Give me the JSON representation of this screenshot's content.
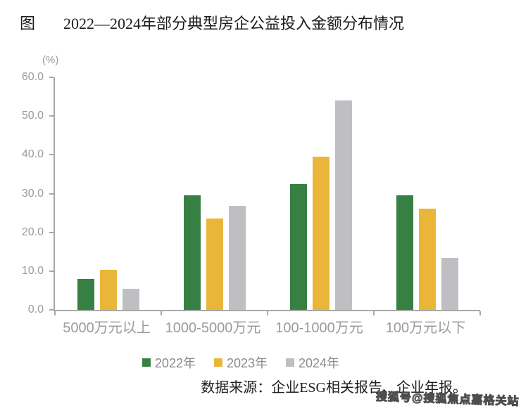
{
  "title": {
    "prefix": "图",
    "text": "2022—2024年部分典型房企公益投入金额分布情况"
  },
  "chart_data": {
    "type": "bar",
    "title": "2022—2024年部分典型房企公益投入金额分布情况",
    "unit_label": "(%)",
    "xlabel": "",
    "ylabel": "(%)",
    "ylim": [
      0,
      60
    ],
    "ytick_step": 10,
    "yticks": [
      "0.0",
      "10.0",
      "20.0",
      "30.0",
      "40.0",
      "50.0",
      "60.0"
    ],
    "grid": false,
    "legend_position": "bottom",
    "categories": [
      "5000万元以上",
      "1000-5000万元",
      "100-1000万元",
      "100万元以下"
    ],
    "series": [
      {
        "name": "2022年",
        "color": "#378043",
        "values": [
          7.9,
          29.5,
          32.4,
          29.5
        ]
      },
      {
        "name": "2023年",
        "color": "#eab63a",
        "values": [
          10.3,
          23.6,
          39.5,
          26.1
        ]
      },
      {
        "name": "2024年",
        "color": "#bfbfc3",
        "values": [
          5.4,
          26.9,
          54.0,
          13.4
        ]
      }
    ]
  },
  "source_note": "数据来源：企业ESG相关报告、企业年报。",
  "watermark": "搜狐号@搜狐焦点嘉格关站",
  "colors": {
    "axis": "#a8a8a8",
    "axis_text": "#9b9b9b",
    "legend_text": "#8a8a8a",
    "title_text": "#1c1c1c",
    "series_2022": "#378043",
    "series_2023": "#eab63a",
    "series_2024": "#bfbfc3"
  }
}
